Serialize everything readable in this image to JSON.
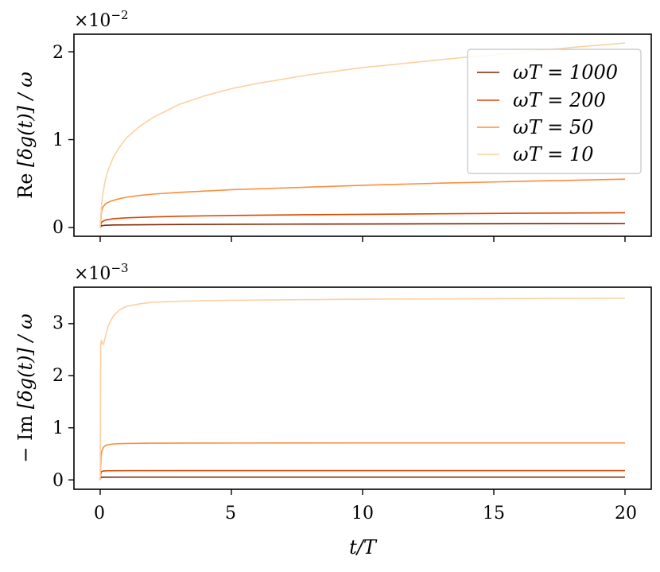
{
  "chart_data": [
    {
      "type": "line",
      "ylabel_main": "Re",
      "ylabel_expr": "[δg(t)] / ω",
      "scale_text": "×10",
      "scale_exp": "−2",
      "ylim": [
        -0.1,
        2.2
      ],
      "y_ticks": [
        0,
        1,
        2
      ],
      "y_tick_labels": [
        "0",
        "1",
        "2"
      ],
      "xlim": [
        -1,
        21
      ],
      "x_ticks": [
        0,
        5,
        10,
        15,
        20
      ],
      "legend": {
        "position": "top-right"
      },
      "series": [
        {
          "name": "ωT = 1000",
          "color": "#7f2704",
          "x": [
            0,
            0.05,
            0.2,
            0.5,
            1,
            2,
            3,
            5,
            7,
            10,
            13,
            16,
            20
          ],
          "y": [
            0,
            0.02,
            0.025,
            0.028,
            0.03,
            0.032,
            0.034,
            0.036,
            0.038,
            0.04,
            0.042,
            0.044,
            0.046
          ]
        },
        {
          "name": "ωT = 200",
          "color": "#d94801",
          "x": [
            0,
            0.05,
            0.2,
            0.5,
            1,
            2,
            3,
            5,
            7,
            10,
            13,
            16,
            20
          ],
          "y": [
            0,
            0.06,
            0.085,
            0.1,
            0.11,
            0.12,
            0.128,
            0.137,
            0.143,
            0.15,
            0.156,
            0.162,
            0.168
          ]
        },
        {
          "name": "ωT = 50",
          "color": "#fd8d3c",
          "x": [
            0,
            0.05,
            0.1,
            0.2,
            0.4,
            0.7,
            1,
            1.5,
            2,
            3,
            4,
            5,
            7,
            10,
            13,
            16,
            20
          ],
          "y": [
            0,
            0.18,
            0.23,
            0.27,
            0.3,
            0.325,
            0.345,
            0.365,
            0.38,
            0.4,
            0.415,
            0.43,
            0.45,
            0.48,
            0.505,
            0.525,
            0.55
          ]
        },
        {
          "name": "ωT = 10",
          "color": "#fdd0a2",
          "x": [
            0,
            0.05,
            0.1,
            0.2,
            0.3,
            0.5,
            0.75,
            1,
            1.5,
            2,
            3,
            4,
            5,
            6,
            8,
            10,
            12,
            14,
            16,
            18,
            20
          ],
          "y": [
            0,
            0.25,
            0.38,
            0.55,
            0.65,
            0.8,
            0.92,
            1.02,
            1.15,
            1.25,
            1.4,
            1.5,
            1.58,
            1.64,
            1.74,
            1.82,
            1.88,
            1.94,
            1.99,
            2.05,
            2.1
          ]
        }
      ]
    },
    {
      "type": "line",
      "ylabel_main": "− Im",
      "ylabel_expr": "[δg(t)] / ω",
      "scale_text": "×10",
      "scale_exp": "−3",
      "xlabel": "t/T",
      "ylim": [
        -0.18,
        3.7
      ],
      "y_ticks": [
        0,
        1,
        2,
        3
      ],
      "y_tick_labels": [
        "0",
        "1",
        "2",
        "3"
      ],
      "xlim": [
        -1,
        21
      ],
      "x_ticks": [
        0,
        5,
        10,
        15,
        20
      ],
      "x_tick_labels": [
        "0",
        "5",
        "10",
        "15",
        "20"
      ],
      "series": [
        {
          "name": "ωT = 1000",
          "color": "#7f2704",
          "x": [
            0,
            0.02,
            0.05,
            0.1,
            1,
            5,
            10,
            20
          ],
          "y": [
            0,
            0.04,
            0.05,
            0.052,
            0.053,
            0.053,
            0.053,
            0.053
          ]
        },
        {
          "name": "ωT = 200",
          "color": "#d94801",
          "x": [
            0,
            0.02,
            0.05,
            0.1,
            0.3,
            1,
            5,
            10,
            20
          ],
          "y": [
            0,
            0.12,
            0.16,
            0.17,
            0.175,
            0.177,
            0.178,
            0.178,
            0.178
          ]
        },
        {
          "name": "ωT = 50",
          "color": "#fd8d3c",
          "x": [
            0,
            0.03,
            0.06,
            0.1,
            0.15,
            0.25,
            0.4,
            0.7,
            1,
            2,
            5,
            10,
            20
          ],
          "y": [
            0,
            0.45,
            0.55,
            0.6,
            0.64,
            0.67,
            0.685,
            0.695,
            0.7,
            0.705,
            0.708,
            0.71,
            0.71
          ]
        },
        {
          "name": "ωT = 10",
          "color": "#fdd0a2",
          "x": [
            0,
            0.02,
            0.05,
            0.08,
            0.12,
            0.2,
            0.3,
            0.5,
            0.75,
            1,
            1.5,
            2,
            3,
            5,
            10,
            15,
            20
          ],
          "y": [
            0,
            2.6,
            2.68,
            2.62,
            2.6,
            2.75,
            2.95,
            3.15,
            3.27,
            3.33,
            3.38,
            3.41,
            3.43,
            3.45,
            3.47,
            3.48,
            3.49
          ]
        }
      ]
    }
  ]
}
